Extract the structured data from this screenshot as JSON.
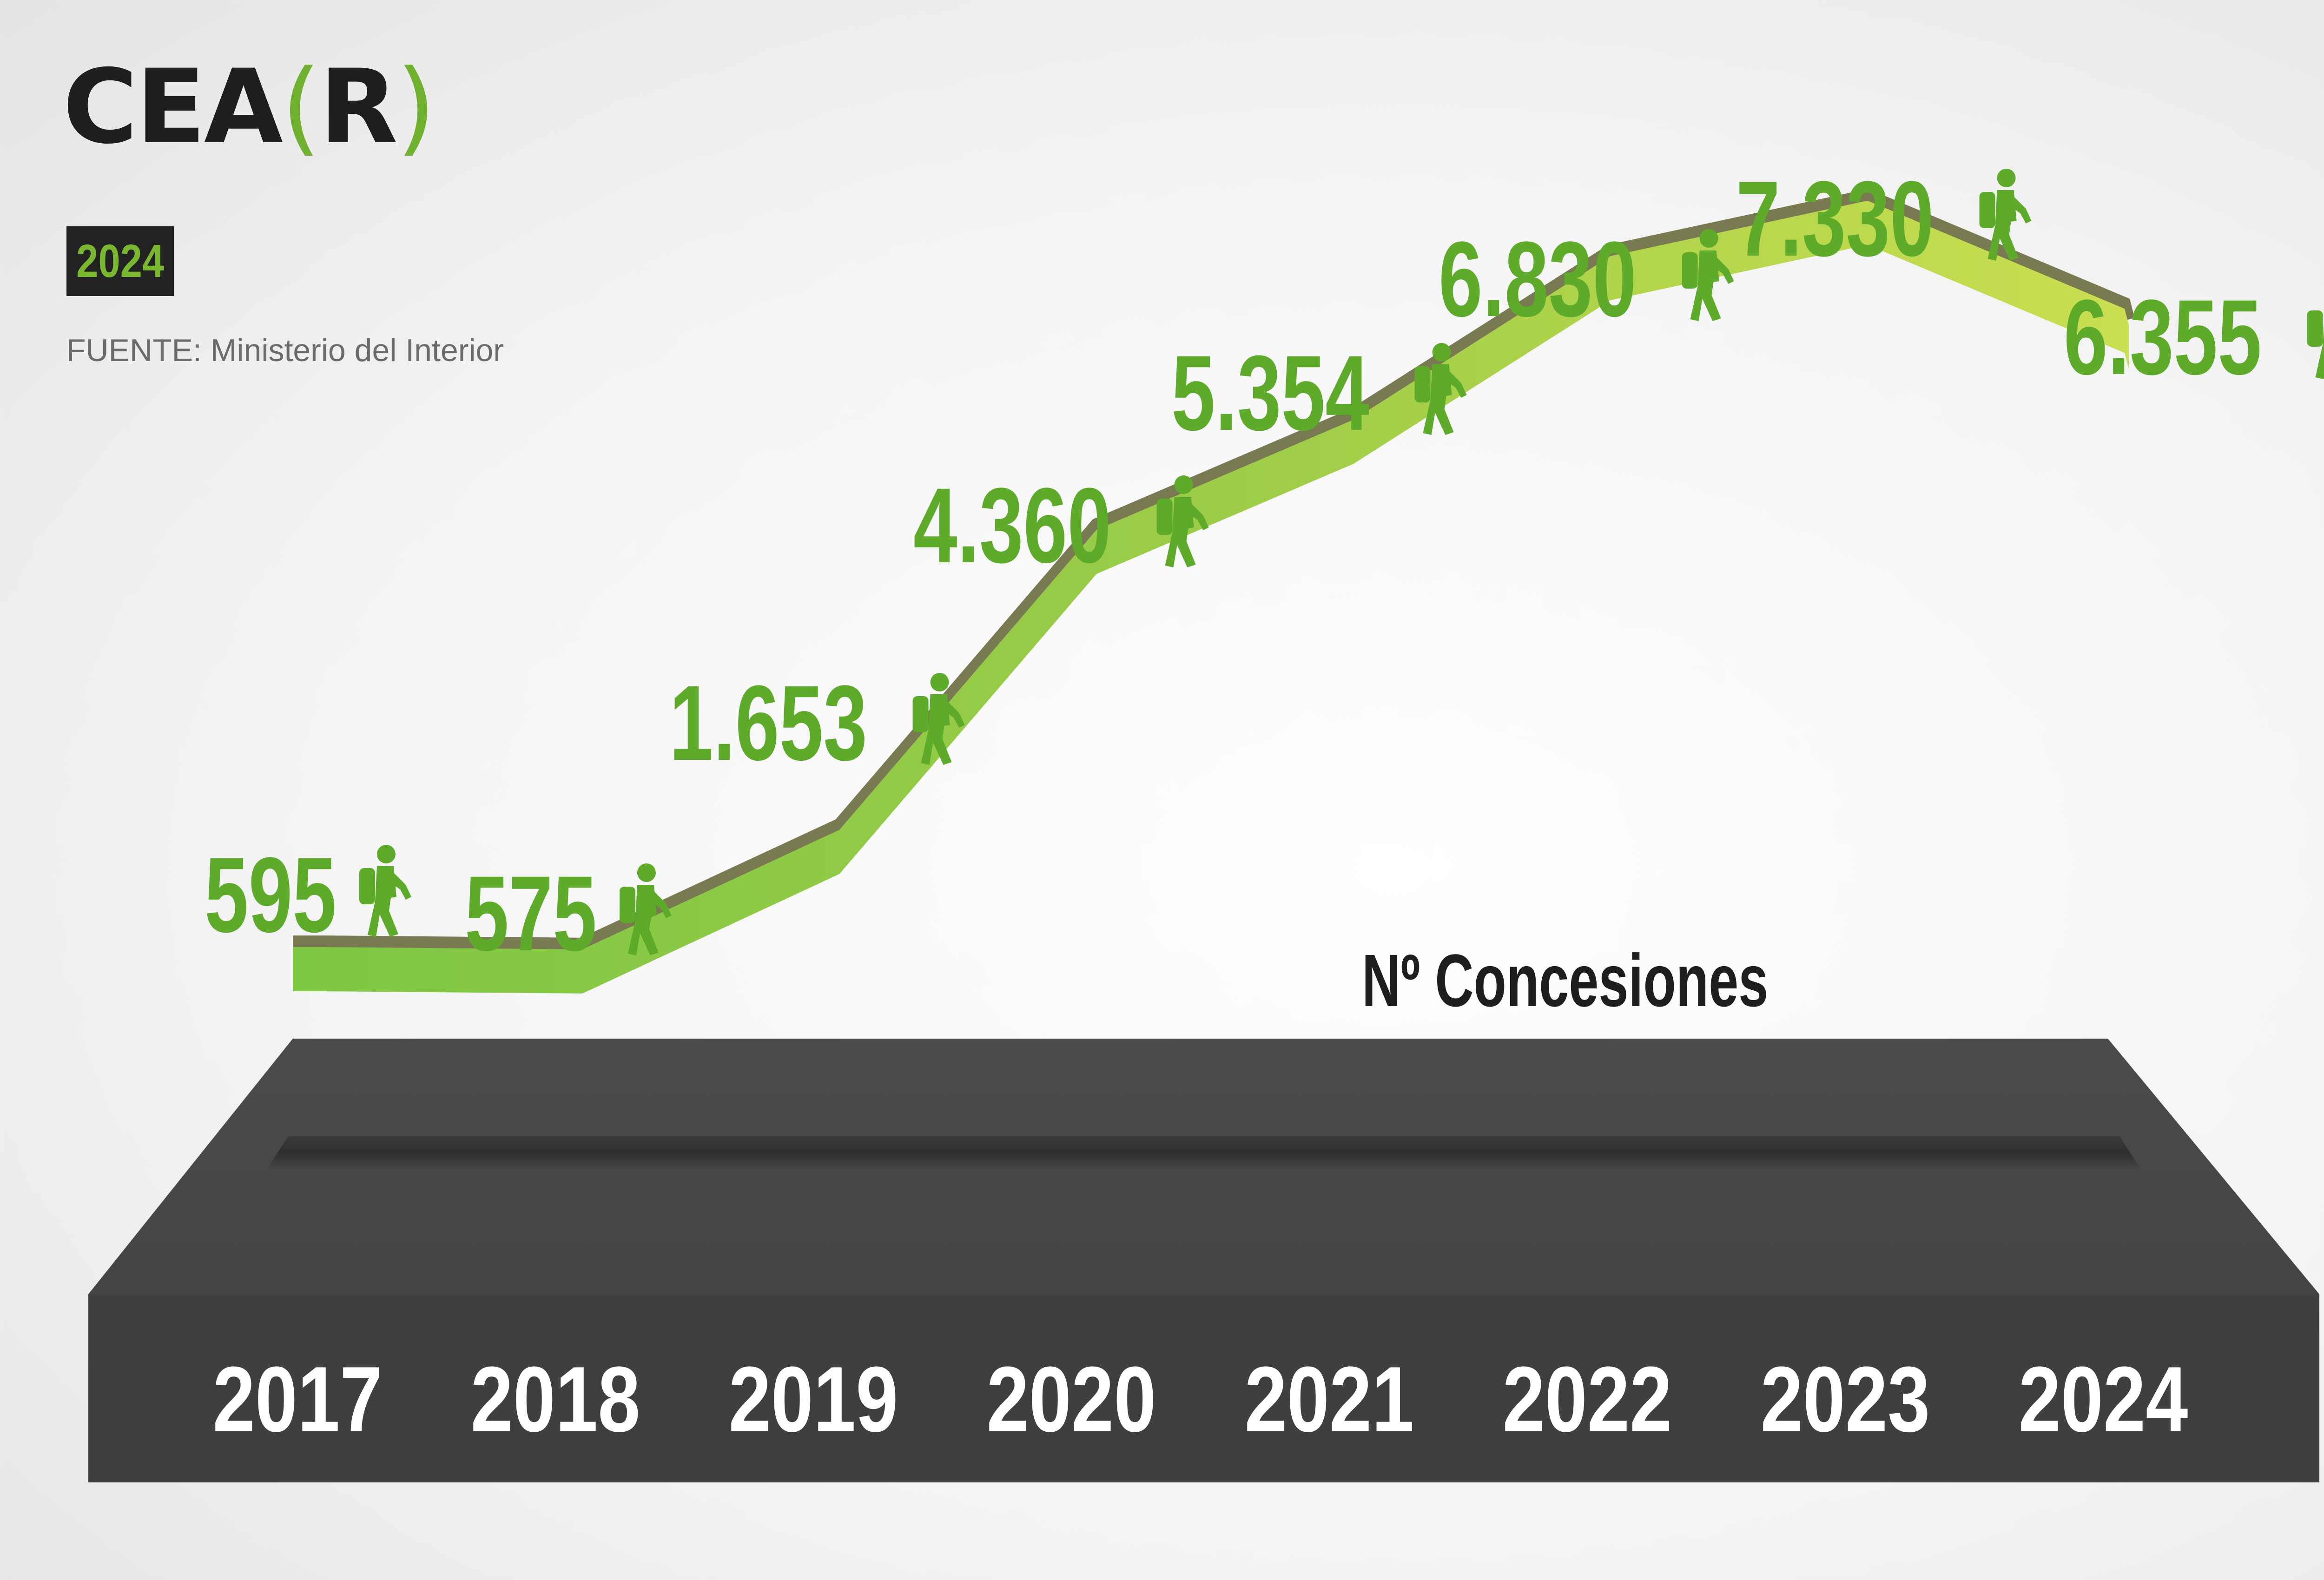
{
  "brand": {
    "logo_text": "CEA",
    "logo_bracket_open": "(",
    "logo_bracket_letter": "R",
    "logo_bracket_close": ")"
  },
  "badge": {
    "year": "2024"
  },
  "source": "FUENTE: Ministerio del Interior",
  "colors": {
    "accent_green": "#6fb12f",
    "line_green_light": "#c7dd52",
    "line_green_mid": "#8fc943",
    "base_dark": "#4a4a4a",
    "year_label": "#ffffff",
    "value_label": "#5eaa2a"
  },
  "chart_data": {
    "type": "line",
    "title": "Nº Concesiones",
    "xlabel": "",
    "ylabel": "",
    "categories": [
      "2017",
      "2018",
      "2019",
      "2020",
      "2021",
      "2022",
      "2023",
      "2024"
    ],
    "value_labels": [
      "595",
      "575",
      "1.653",
      "4.360",
      "5.354",
      "6.830",
      "7.330",
      "6.355"
    ],
    "series": [
      {
        "values": [
          595,
          575,
          1653,
          4360,
          5354,
          6830,
          7330,
          6355
        ]
      }
    ],
    "marker_icon": "hiker-with-backpack-icon",
    "grid": false,
    "legend": "none"
  }
}
